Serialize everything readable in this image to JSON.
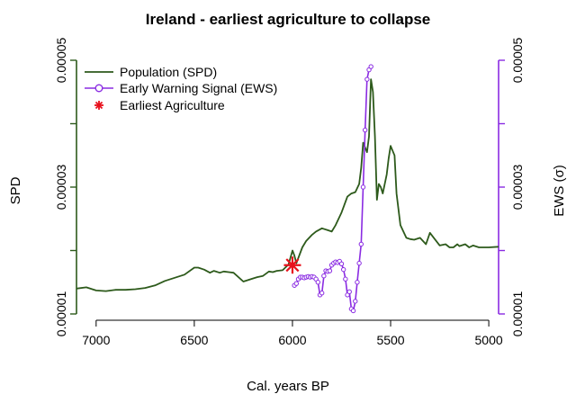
{
  "chart_data": {
    "type": "line",
    "title": "Ireland - earliest agriculture to collapse",
    "xlabel": "Cal. years BP",
    "ylabel_left": "SPD",
    "ylabel_right": "EWS (σ)",
    "x_reversed": true,
    "xlim": [
      7100,
      4950
    ],
    "ylim_left": [
      1e-05,
      5e-05
    ],
    "ylim_right": [
      1e-05,
      5e-05
    ],
    "x_ticks": [
      {
        "value": 7000,
        "label": "7000"
      },
      {
        "value": 6500,
        "label": "6500"
      },
      {
        "value": 6000,
        "label": "6000"
      },
      {
        "value": 5500,
        "label": "5500"
      },
      {
        "value": 5000,
        "label": "5000"
      }
    ],
    "y_ticks_left": [
      {
        "value": 1e-05,
        "label": "0.00001"
      },
      {
        "value": 3e-05,
        "label": "0.00003"
      },
      {
        "value": 5e-05,
        "label": "0.00005"
      }
    ],
    "y_ticks_left_minor": [
      2e-05,
      4e-05
    ],
    "y_ticks_right": [
      {
        "value": 1e-05,
        "label": "0.00001"
      },
      {
        "value": 3e-05,
        "label": "0.00003"
      },
      {
        "value": 5e-05,
        "label": "0.00005"
      }
    ],
    "y_ticks_right_minor": [
      2e-05,
      4e-05
    ],
    "grid": false,
    "legend_position": "top-left",
    "colors": {
      "population": "#2d5a1b",
      "ews": "#8a2be2",
      "agriculture": "#e8101c"
    },
    "legend": [
      {
        "label": "Population (SPD)",
        "kind": "line"
      },
      {
        "label": "Early Warning Signal (EWS)",
        "kind": "line-point"
      },
      {
        "label": "Earliest Agriculture",
        "kind": "star"
      }
    ],
    "series": [
      {
        "name": "Population (SPD)",
        "x": [
          7100,
          7050,
          7000,
          6950,
          6900,
          6850,
          6800,
          6750,
          6700,
          6650,
          6600,
          6550,
          6500,
          6480,
          6450,
          6420,
          6400,
          6370,
          6350,
          6300,
          6250,
          6200,
          6180,
          6150,
          6120,
          6100,
          6080,
          6050,
          6020,
          6000,
          5990,
          5980,
          5950,
          5930,
          5900,
          5880,
          5850,
          5820,
          5800,
          5780,
          5750,
          5720,
          5700,
          5680,
          5660,
          5650,
          5640,
          5620,
          5610,
          5600,
          5590,
          5580,
          5570,
          5560,
          5550,
          5540,
          5520,
          5510,
          5500,
          5480,
          5470,
          5450,
          5420,
          5400,
          5380,
          5350,
          5320,
          5300,
          5280,
          5250,
          5220,
          5200,
          5180,
          5160,
          5150,
          5120,
          5100,
          5080,
          5050,
          5020,
          5000,
          4950
        ],
        "y": [
          1.4e-05,
          1.42e-05,
          1.37e-05,
          1.36e-05,
          1.38e-05,
          1.38e-05,
          1.39e-05,
          1.41e-05,
          1.45e-05,
          1.52e-05,
          1.57e-05,
          1.62e-05,
          1.73e-05,
          1.73e-05,
          1.7e-05,
          1.65e-05,
          1.68e-05,
          1.65e-05,
          1.67e-05,
          1.65e-05,
          1.51e-05,
          1.56e-05,
          1.58e-05,
          1.6e-05,
          1.67e-05,
          1.66e-05,
          1.68e-05,
          1.69e-05,
          1.78e-05,
          2e-05,
          1.92e-05,
          1.8e-05,
          2.05e-05,
          2.15e-05,
          2.25e-05,
          2.3e-05,
          2.35e-05,
          2.32e-05,
          2.3e-05,
          2.4e-05,
          2.6e-05,
          2.85e-05,
          2.9e-05,
          2.92e-05,
          3.05e-05,
          3.3e-05,
          3.7e-05,
          3.55e-05,
          3.8e-05,
          4.7e-05,
          4.5e-05,
          3.8e-05,
          2.8e-05,
          3.05e-05,
          3e-05,
          2.9e-05,
          3.2e-05,
          3.45e-05,
          3.65e-05,
          3.5e-05,
          2.9e-05,
          2.4e-05,
          2.2e-05,
          2.18e-05,
          2.17e-05,
          2.2e-05,
          2.1e-05,
          2.28e-05,
          2.2e-05,
          2.08e-05,
          2.1e-05,
          2.05e-05,
          2.05e-05,
          2.1e-05,
          2.07e-05,
          2.1e-05,
          2.05e-05,
          2.08e-05,
          2.05e-05,
          2.05e-05,
          2.05e-05,
          2.06e-05
        ]
      },
      {
        "name": "Early Warning Signal (EWS)",
        "x": [
          5990,
          5980,
          5970,
          5960,
          5950,
          5940,
          5930,
          5920,
          5910,
          5900,
          5890,
          5880,
          5870,
          5860,
          5850,
          5840,
          5830,
          5820,
          5810,
          5800,
          5790,
          5780,
          5770,
          5760,
          5750,
          5740,
          5730,
          5720,
          5710,
          5700,
          5690,
          5680,
          5670,
          5660,
          5650,
          5640,
          5630,
          5620,
          5610,
          5600
        ],
        "y": [
          1.45e-05,
          1.48e-05,
          1.55e-05,
          1.58e-05,
          1.58e-05,
          1.57e-05,
          1.58e-05,
          1.59e-05,
          1.58e-05,
          1.59e-05,
          1.58e-05,
          1.55e-05,
          1.5e-05,
          1.3e-05,
          1.33e-05,
          1.6e-05,
          1.68e-05,
          1.67e-05,
          1.68e-05,
          1.77e-05,
          1.8e-05,
          1.82e-05,
          1.81e-05,
          1.83e-05,
          1.79e-05,
          1.7e-05,
          1.55e-05,
          1.3e-05,
          1.35e-05,
          1.08e-05,
          1.05e-05,
          1.2e-05,
          1.5e-05,
          1.8e-05,
          2.1e-05,
          3e-05,
          3.9e-05,
          4.7e-05,
          4.85e-05,
          4.9e-05
        ]
      }
    ],
    "agriculture_point": {
      "x": 6000,
      "y": 1.77e-05
    }
  }
}
